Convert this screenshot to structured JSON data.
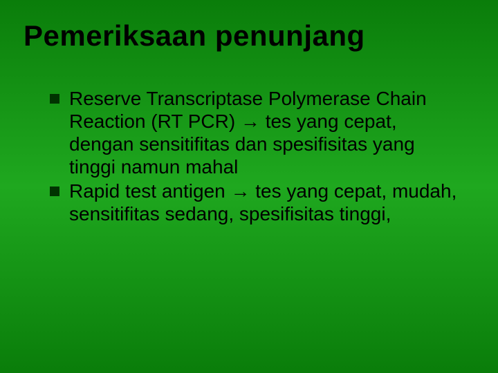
{
  "slide": {
    "title": "Pemeriksaan penunjang",
    "title_fontsize": 42,
    "title_color": "#000000",
    "body_fontsize": 28,
    "body_color": "#000000",
    "bullet_color": "#003300",
    "background_gradient": [
      "#0a7d0a",
      "#1fa81f",
      "#0a7d0a"
    ],
    "bullets": [
      {
        "text": "Reserve Transcriptase Polymerase Chain Reaction (RT PCR) → tes yang cepat, dengan sensitifitas dan spesifisitas yang tinggi namun mahal"
      },
      {
        "text": "Rapid test antigen → tes yang cepat, mudah, sensitifitas sedang, spesifisitas tinggi,"
      }
    ]
  }
}
